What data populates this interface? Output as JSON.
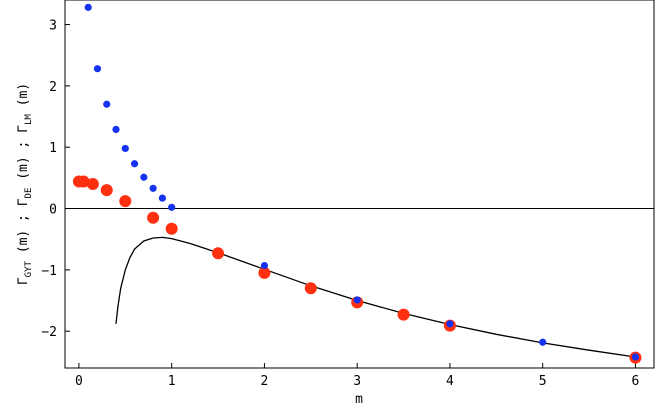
{
  "chart_data": {
    "type": "scatter",
    "xlabel": "m",
    "ylabel_parts": [
      {
        "symbol": "Γ",
        "sub": "GYT",
        "arg": " (m)"
      },
      {
        "sep": "  ;  "
      },
      {
        "symbol": "Γ",
        "sub": "DE",
        "arg": " (m)"
      },
      {
        "sep": "  ;  "
      },
      {
        "symbol": "Γ",
        "sub": "LM",
        "arg": " (m)"
      }
    ],
    "xlim": [
      -0.15,
      6.2
    ],
    "ylim": [
      -2.6,
      3.4
    ],
    "xticks": [
      0,
      1,
      2,
      3,
      4,
      5,
      6
    ],
    "yticks": [
      -2,
      -1,
      0,
      1,
      2,
      3
    ],
    "zero_line": true,
    "colors": {
      "blue": "#1432f0",
      "red": "#ff3010",
      "curve": "#000000"
    },
    "series": [
      {
        "name": "Γ_LM",
        "color": "#1432f0",
        "marker_size": "small",
        "points": [
          [
            0.1,
            3.28
          ],
          [
            0.2,
            2.28
          ],
          [
            0.3,
            1.7
          ],
          [
            0.4,
            1.29
          ],
          [
            0.5,
            0.98
          ],
          [
            0.6,
            0.73
          ],
          [
            0.7,
            0.51
          ],
          [
            0.8,
            0.33
          ],
          [
            0.9,
            0.17
          ],
          [
            1.0,
            0.02
          ],
          [
            2.0,
            -0.93
          ],
          [
            3.0,
            -1.49
          ],
          [
            4.0,
            -1.88
          ],
          [
            5.0,
            -2.18
          ],
          [
            6.0,
            -2.42
          ]
        ]
      },
      {
        "name": "Γ_DE",
        "color": "#ff3010",
        "marker_size": "large",
        "points": [
          [
            0.0,
            0.44
          ],
          [
            0.05,
            0.44
          ],
          [
            0.15,
            0.4
          ],
          [
            0.3,
            0.3
          ],
          [
            0.5,
            0.12
          ],
          [
            0.8,
            -0.15
          ],
          [
            1.0,
            -0.33
          ],
          [
            1.5,
            -0.73
          ],
          [
            2.0,
            -1.05
          ],
          [
            2.5,
            -1.3
          ],
          [
            3.0,
            -1.53
          ],
          [
            3.5,
            -1.73
          ],
          [
            4.0,
            -1.91
          ],
          [
            6.0,
            -2.43
          ]
        ]
      },
      {
        "name": "Γ_GYT",
        "color": "#000000",
        "kind": "line",
        "points": [
          [
            0.4,
            -1.88
          ],
          [
            0.42,
            -1.6
          ],
          [
            0.45,
            -1.3
          ],
          [
            0.5,
            -1.0
          ],
          [
            0.55,
            -0.8
          ],
          [
            0.6,
            -0.66
          ],
          [
            0.7,
            -0.53
          ],
          [
            0.8,
            -0.48
          ],
          [
            0.9,
            -0.47
          ],
          [
            1.0,
            -0.49
          ],
          [
            1.2,
            -0.57
          ],
          [
            1.5,
            -0.72
          ],
          [
            2.0,
            -0.99
          ],
          [
            2.5,
            -1.26
          ],
          [
            3.0,
            -1.5
          ],
          [
            3.5,
            -1.71
          ],
          [
            4.0,
            -1.89
          ],
          [
            4.5,
            -2.05
          ],
          [
            5.0,
            -2.19
          ],
          [
            5.5,
            -2.31
          ],
          [
            6.0,
            -2.42
          ]
        ]
      }
    ]
  }
}
